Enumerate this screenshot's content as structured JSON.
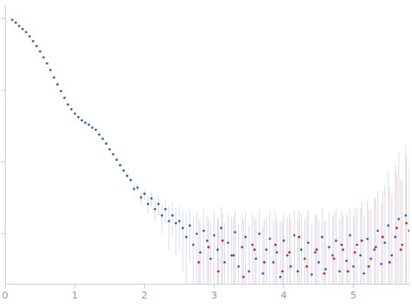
{
  "chart_data": {
    "type": "scatter",
    "xlim": [
      0,
      5.8
    ],
    "xticks": [
      0,
      1,
      2,
      3,
      4,
      5
    ],
    "ylim": [
      0.2,
      1500
    ],
    "yticks": [
      1,
      10,
      100,
      1000
    ],
    "log": "y",
    "grid": false,
    "tick_labels": "x",
    "series": [
      {
        "color": "#3b68c6",
        "marker": "circle",
        "x": [
          0.1,
          0.15,
          0.2,
          0.25,
          0.3,
          0.35,
          0.4,
          0.45,
          0.5,
          0.55,
          0.6,
          0.65,
          0.7,
          0.75,
          0.8,
          0.85,
          0.9,
          0.95,
          1.0,
          1.05,
          1.1,
          1.15,
          1.2,
          1.25,
          1.3,
          1.35,
          1.4,
          1.45,
          1.5,
          1.55,
          1.6,
          1.65,
          1.7,
          1.75,
          1.8,
          1.85,
          1.9,
          1.95,
          2.0,
          2.05,
          2.1,
          2.15,
          2.2,
          2.25,
          2.3,
          2.35,
          2.4,
          2.45,
          2.5,
          2.55,
          2.6,
          2.65,
          2.7,
          2.75,
          2.8,
          2.85,
          2.9,
          2.95,
          3.0,
          3.05,
          3.1,
          3.15,
          3.2,
          3.25,
          3.3,
          3.35,
          3.4,
          3.45,
          3.5,
          3.55,
          3.6,
          3.65,
          3.7,
          3.75,
          3.8,
          3.85,
          3.9,
          3.95,
          4.0,
          4.05,
          4.1,
          4.15,
          4.2,
          4.25,
          4.3,
          4.35,
          4.4,
          4.45,
          4.5,
          4.55,
          4.6,
          4.65,
          4.7,
          4.75,
          4.8,
          4.85,
          4.9,
          4.95,
          5.0,
          5.05,
          5.1,
          5.15,
          5.2,
          5.25,
          5.3,
          5.35,
          5.4,
          5.45,
          5.5,
          5.55,
          5.6,
          5.65,
          5.7,
          5.75,
          5.8
        ],
        "values": [
          950,
          870,
          780,
          710,
          640,
          560,
          480,
          410,
          345,
          285,
          235,
          190,
          150,
          120,
          97,
          78,
          63,
          54,
          47,
          42,
          38,
          35,
          33,
          30,
          28,
          24,
          21,
          18,
          15,
          12.8,
          10.7,
          9.0,
          7.6,
          6.4,
          5.6,
          4.2,
          4.4,
          3.2,
          3.6,
          2.6,
          3.1,
          2.2,
          2.6,
          1.8,
          2.2,
          1.5,
          1.8,
          1.4,
          1.5,
          1.2,
          0.9,
          1.3,
          0.7,
          1.0,
          0.55,
          1.1,
          0.8,
          0.45,
          0.95,
          0.6,
          1.2,
          0.4,
          0.75,
          0.5,
          1.05,
          0.35,
          0.65,
          0.9,
          0.3,
          0.7,
          0.45,
          1.0,
          0.28,
          0.6,
          0.85,
          0.4,
          0.55,
          0.25,
          0.8,
          0.5,
          0.35,
          0.95,
          0.3,
          0.6,
          0.45,
          0.75,
          0.27,
          0.55,
          0.4,
          0.9,
          0.32,
          0.65,
          0.5,
          0.8,
          0.3,
          0.6,
          0.42,
          0.95,
          0.35,
          0.7,
          0.5,
          0.28,
          0.85,
          0.45,
          0.6,
          1.1,
          0.38,
          0.75,
          1.3,
          0.5,
          0.9,
          1.6,
          0.7,
          1.8,
          1.1
        ],
        "errors": [
          8,
          7,
          6,
          5,
          5,
          4,
          4,
          3,
          3,
          2.5,
          2,
          2,
          1.5,
          1.2,
          1,
          0.8,
          0.7,
          0.6,
          0.5,
          0.5,
          0.5,
          0.5,
          0.5,
          0.5,
          0.5,
          0.5,
          0.5,
          0.5,
          0.5,
          0.4,
          0.4,
          0.4,
          0.4,
          0.4,
          0.5,
          0.5,
          0.6,
          0.6,
          0.6,
          0.7,
          0.7,
          0.7,
          0.8,
          0.8,
          0.8,
          0.9,
          0.9,
          0.9,
          0.9,
          0.9,
          1,
          0.9,
          1,
          1,
          0.9,
          1.1,
          1,
          0.9,
          1.1,
          1.1,
          1.2,
          1,
          1.1,
          1.2,
          1.1,
          1,
          1.2,
          1.1,
          1,
          1.2,
          1.1,
          1.2,
          1,
          1.1,
          1.2,
          1.1,
          1,
          1.2,
          1.1,
          1.2,
          1.3,
          1.1,
          1.2,
          1.3,
          1.2,
          1.4,
          1.1,
          1.3,
          1.2,
          1.4,
          1.2,
          1.3,
          1.2,
          1.4,
          1.3,
          1.2,
          1.5,
          1.3,
          1.4,
          1.6,
          1.8,
          1.5,
          2,
          1.7,
          2.5,
          3,
          2.2,
          4,
          6,
          3,
          8,
          12,
          5,
          15,
          9
        ]
      },
      {
        "color": "#e8231b",
        "marker": "circle",
        "x": [
          2.78,
          2.92,
          3.06,
          3.12,
          3.28,
          3.42,
          3.58,
          3.72,
          3.88,
          3.98,
          4.08,
          4.22,
          4.33,
          4.47,
          4.58,
          4.72,
          4.83,
          4.92,
          5.02,
          5.12,
          5.22,
          5.32,
          5.42,
          5.52,
          5.62,
          5.68,
          5.76
        ],
        "values": [
          0.4,
          0.65,
          0.3,
          0.8,
          0.5,
          0.25,
          0.6,
          0.4,
          0.7,
          0.3,
          0.55,
          0.9,
          0.35,
          0.6,
          0.28,
          0.45,
          0.7,
          0.3,
          0.55,
          0.8,
          0.35,
          0.65,
          0.9,
          0.4,
          1.2,
          0.6,
          1.4
        ],
        "errors": [
          1.2,
          1,
          1.3,
          1.1,
          1.2,
          1.3,
          1.1,
          1.2,
          1.3,
          1.2,
          1.3,
          1.2,
          1.4,
          1.3,
          1.2,
          1.4,
          1.3,
          1.5,
          1.6,
          2,
          1.8,
          2.5,
          3,
          4,
          6,
          5,
          10
        ]
      }
    ]
  }
}
